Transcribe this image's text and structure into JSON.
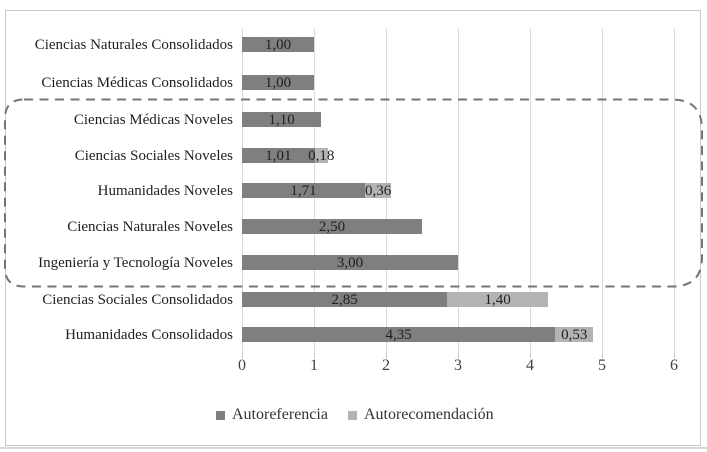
{
  "chart_data": {
    "type": "bar",
    "orientation": "horizontal",
    "stacked": true,
    "title": "",
    "xlabel": "",
    "ylabel": "",
    "categories": [
      "Ciencias Naturales Consolidados",
      "Ciencias Médicas Consolidados",
      "Ciencias Médicas Noveles",
      "Ciencias Sociales Noveles",
      "Humanidades Noveles",
      "Ciencias Naturales Noveles",
      "Ingeniería y Tecnología Noveles",
      "Ciencias Sociales Consolidados",
      "Humanidades Consolidados"
    ],
    "series": [
      {
        "name": "Autoreferencia",
        "color": "#7f7f7f",
        "values": [
          1.0,
          1.0,
          1.1,
          1.01,
          1.71,
          2.5,
          3.0,
          2.85,
          4.35
        ],
        "labels": [
          "1,00",
          "1,00",
          "1,10",
          "1,01",
          "1,71",
          "2,50",
          "3,00",
          "2,85",
          "4,35"
        ]
      },
      {
        "name": "Autorecomendación",
        "color": "#b3b3b3",
        "values": [
          null,
          null,
          null,
          0.18,
          0.36,
          null,
          null,
          1.4,
          0.53
        ],
        "labels": [
          null,
          null,
          null,
          "0,18",
          "0,36",
          null,
          null,
          "1,40",
          "0,53"
        ]
      }
    ],
    "xlim": [
      0,
      6
    ],
    "xticks": [
      "0",
      "1",
      "2",
      "3",
      "4",
      "5",
      "6"
    ],
    "grid": "vertical",
    "legend_position": "bottom",
    "annotation": {
      "type": "dashed-rounded-box",
      "encloses_categories": [
        "Ciencias Médicas Noveles",
        "Ciencias Sociales Noveles",
        "Humanidades Noveles",
        "Ciencias Naturales Noveles",
        "Ingeniería y Tecnología Noveles"
      ]
    }
  },
  "colors": {
    "gridline": "#d9d9d9",
    "dashed_box": "#757575",
    "chart_border": "#c9c9c9",
    "category_text": "#1f1f1f",
    "value_text": "#1f1f1f",
    "axis_text": "#3f3f3f"
  }
}
